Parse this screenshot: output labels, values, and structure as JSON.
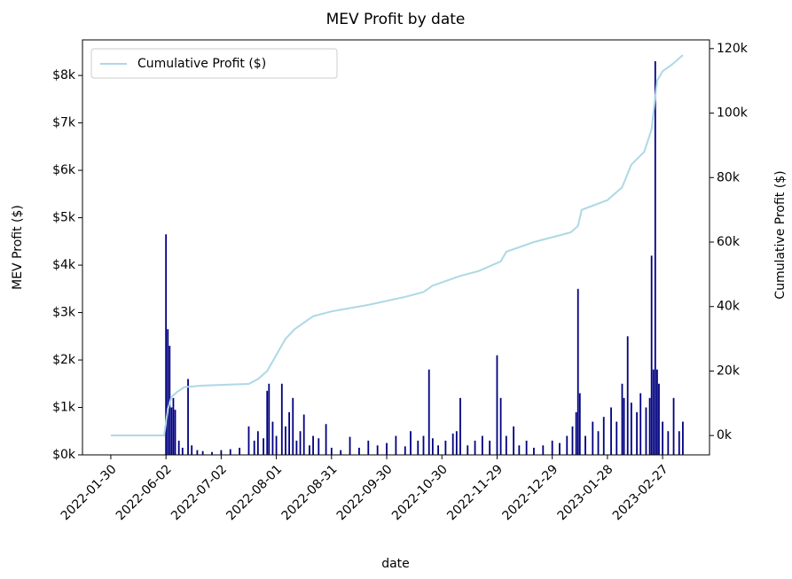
{
  "chart_data": {
    "type": "bar",
    "title": "MEV Profit by date",
    "xlabel": "date",
    "ylabel": "MEV Profit ($)",
    "y2label": "Cumulative Profit ($)",
    "xlim": [
      -15.4,
      325.5
    ],
    "xticks": [
      {
        "value": 0,
        "label": "2022-01-30"
      },
      {
        "value": 30,
        "label": "2022-06-02"
      },
      {
        "value": 60,
        "label": "2022-07-02"
      },
      {
        "value": 90,
        "label": "2022-08-01"
      },
      {
        "value": 120,
        "label": "2022-08-31"
      },
      {
        "value": 150,
        "label": "2022-09-30"
      },
      {
        "value": 180,
        "label": "2022-10-30"
      },
      {
        "value": 210,
        "label": "2022-11-29"
      },
      {
        "value": 240,
        "label": "2022-12-29"
      },
      {
        "value": 270,
        "label": "2023-01-28"
      },
      {
        "value": 300,
        "label": "2023-02-27"
      }
    ],
    "ylim": [
      0,
      8750
    ],
    "yticks": [
      {
        "value": 0,
        "label": "$0k"
      },
      {
        "value": 1000,
        "label": "$1k"
      },
      {
        "value": 2000,
        "label": "$2k"
      },
      {
        "value": 3000,
        "label": "$3k"
      },
      {
        "value": 4000,
        "label": "$4k"
      },
      {
        "value": 5000,
        "label": "$5k"
      },
      {
        "value": 6000,
        "label": "$6k"
      },
      {
        "value": 7000,
        "label": "$7k"
      },
      {
        "value": 8000,
        "label": "$8k"
      }
    ],
    "y2lim": [
      -6000,
      122700
    ],
    "y2ticks": [
      {
        "value": 0,
        "label": "0k"
      },
      {
        "value": 20000,
        "label": "20k"
      },
      {
        "value": 40000,
        "label": "40k"
      },
      {
        "value": 60000,
        "label": "60k"
      },
      {
        "value": 80000,
        "label": "80k"
      },
      {
        "value": 100000,
        "label": "100k"
      },
      {
        "value": 120000,
        "label": "120k"
      }
    ],
    "legend": "upper left",
    "bars": {
      "color": "#000080",
      "x": [
        30,
        31,
        32,
        33,
        34,
        35,
        37,
        39,
        42,
        44,
        47,
        50,
        55,
        60,
        65,
        70,
        75,
        78,
        80,
        83,
        85,
        86,
        88,
        90,
        93,
        95,
        97,
        99,
        101,
        103,
        105,
        108,
        110,
        113,
        117,
        120,
        125,
        130,
        135,
        140,
        145,
        150,
        155,
        160,
        163,
        167,
        170,
        173,
        175,
        178,
        182,
        186,
        188,
        190,
        194,
        198,
        202,
        206,
        210,
        212,
        215,
        219,
        222,
        226,
        230,
        235,
        240,
        244,
        248,
        251,
        253,
        254,
        255,
        258,
        262,
        265,
        268,
        272,
        275,
        278,
        279,
        281,
        283,
        286,
        288,
        291,
        293,
        294,
        295,
        296,
        297,
        298,
        300,
        303,
        306,
        309,
        311
      ],
      "values": [
        4650,
        2650,
        2300,
        1000,
        1200,
        950,
        300,
        150,
        1600,
        200,
        100,
        80,
        60,
        100,
        120,
        150,
        600,
        300,
        500,
        350,
        1350,
        1500,
        700,
        400,
        1500,
        600,
        900,
        1200,
        300,
        500,
        850,
        200,
        400,
        350,
        650,
        150,
        100,
        380,
        150,
        300,
        200,
        250,
        400,
        180,
        500,
        300,
        400,
        1800,
        350,
        200,
        300,
        450,
        500,
        1200,
        200,
        300,
        400,
        300,
        2100,
        1200,
        400,
        600,
        200,
        300,
        150,
        200,
        300,
        250,
        400,
        600,
        900,
        3500,
        1300,
        400,
        700,
        500,
        800,
        1000,
        700,
        1500,
        1200,
        2500,
        1100,
        900,
        1300,
        1000,
        1200,
        4200,
        1800,
        8300,
        1800,
        1500,
        700,
        500,
        1200,
        500,
        700
      ]
    },
    "line": {
      "name": "Cumulative Profit ($)",
      "color": "#add8e6",
      "axis": "y2",
      "x": [
        0,
        29,
        31,
        33,
        36,
        40,
        50,
        60,
        75,
        80,
        85,
        90,
        95,
        100,
        110,
        120,
        140,
        160,
        170,
        175,
        190,
        200,
        212,
        215,
        230,
        250,
        254,
        256,
        270,
        278,
        283,
        290,
        294,
        297,
        300,
        305,
        311
      ],
      "values": [
        0,
        0,
        8000,
        12000,
        13500,
        15000,
        15500,
        15700,
        16000,
        17500,
        20000,
        25000,
        30000,
        33000,
        37000,
        38500,
        40500,
        43000,
        44500,
        46500,
        49500,
        51000,
        54000,
        57000,
        60000,
        63000,
        65000,
        70000,
        73000,
        77000,
        84000,
        88000,
        95000,
        110000,
        113000,
        115000,
        118000
      ]
    }
  }
}
